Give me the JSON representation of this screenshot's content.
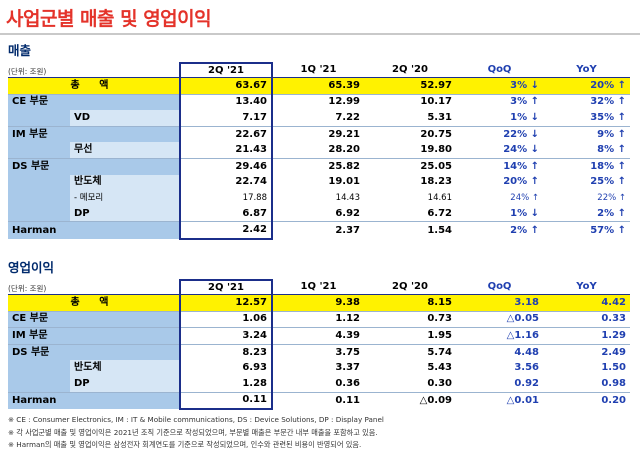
{
  "title": "사업군별 매출 및 영업이익",
  "revenue": {
    "heading": "매출",
    "unit": "(단위: 조원)",
    "columns": [
      "2Q '21",
      "1Q '21",
      "2Q '20",
      "QoQ",
      "YoY"
    ],
    "rows": [
      {
        "label": "총 액",
        "group": "",
        "values": [
          "63.67",
          "65.39",
          "52.97",
          "3% ↓",
          "20% ↑"
        ]
      },
      {
        "label": "CE 부문",
        "group": "",
        "values": [
          "13.40",
          "12.99",
          "10.17",
          "3% ↑",
          "32% ↑"
        ]
      },
      {
        "label": "",
        "group": "VD",
        "values": [
          "7.17",
          "7.22",
          "5.31",
          "1% ↓",
          "35% ↑"
        ]
      },
      {
        "label": "IM 부문",
        "group": "",
        "values": [
          "22.67",
          "29.21",
          "20.75",
          "22% ↓",
          "9% ↑"
        ]
      },
      {
        "label": "",
        "group": "무선",
        "values": [
          "21.43",
          "28.20",
          "19.80",
          "24% ↓",
          "8% ↑"
        ]
      },
      {
        "label": "DS 부문",
        "group": "",
        "values": [
          "29.46",
          "25.82",
          "25.05",
          "14% ↑",
          "18% ↑"
        ]
      },
      {
        "label": "",
        "group": "반도체",
        "values": [
          "22.74",
          "19.01",
          "18.23",
          "20% ↑",
          "25% ↑"
        ]
      },
      {
        "label": "",
        "group": "- 메모리",
        "values": [
          "17.88",
          "14.43",
          "14.61",
          "24% ↑",
          "22% ↑"
        ]
      },
      {
        "label": "",
        "group": "DP",
        "values": [
          "6.87",
          "6.92",
          "6.72",
          "1% ↓",
          "2% ↑"
        ]
      },
      {
        "label": "Harman",
        "group": "",
        "values": [
          "2.42",
          "2.37",
          "1.54",
          "2% ↑",
          "57% ↑"
        ]
      }
    ]
  },
  "operating_profit": {
    "heading": "영업이익",
    "unit": "(단위: 조원)",
    "columns": [
      "2Q '21",
      "1Q '21",
      "2Q '20",
      "QoQ",
      "YoY"
    ],
    "rows": [
      {
        "label": "총 액",
        "group": "",
        "values": [
          "12.57",
          "9.38",
          "8.15",
          "3.18",
          "4.42"
        ]
      },
      {
        "label": "CE 부문",
        "group": "",
        "values": [
          "1.06",
          "1.12",
          "0.73",
          "△0.05",
          "0.33"
        ]
      },
      {
        "label": "IM 부문",
        "group": "",
        "values": [
          "3.24",
          "4.39",
          "1.95",
          "△1.16",
          "1.29"
        ]
      },
      {
        "label": "DS 부문",
        "group": "",
        "values": [
          "8.23",
          "3.75",
          "5.74",
          "4.48",
          "2.49"
        ]
      },
      {
        "label": "",
        "group": "반도체",
        "values": [
          "6.93",
          "3.37",
          "5.43",
          "3.56",
          "1.50"
        ]
      },
      {
        "label": "",
        "group": "DP",
        "values": [
          "1.28",
          "0.36",
          "0.30",
          "0.92",
          "0.98"
        ]
      },
      {
        "label": "Harman",
        "group": "",
        "values": [
          "0.11",
          "0.11",
          "△0.09",
          "△0.01",
          "0.20"
        ]
      }
    ]
  },
  "notes": [
    "※ CE : Consumer Electronics,  IM : IT & Mobile communications,  DS : Device Solutions,  DP : Display Panel",
    "※ 각 사업군별 매출 및 영업이익은 2021년 조직 기준으로 작성되었으며, 부문별 매출은 부문간 내부 매출을 포함하고 있음.",
    "※ Harman의 매출 및 영업이익은 삼성전자 회계연도를 기준으로 작성되었으며, 인수와 관련된 비용이 반영되어 있음."
  ]
}
